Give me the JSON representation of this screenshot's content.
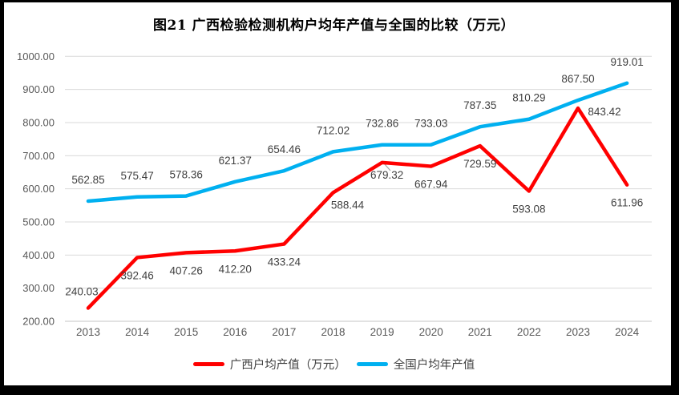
{
  "figure": {
    "title": "图21 广西检验检测机构户均年产值与全国的比较（万元）"
  },
  "chart_data": {
    "type": "line",
    "title": "图21 广西检验检测机构户均年产值与全国的比较（万元）",
    "categories": [
      "2013",
      "2014",
      "2015",
      "2016",
      "2017",
      "2018",
      "2019",
      "2020",
      "2021",
      "2022",
      "2023",
      "2024"
    ],
    "series": [
      {
        "name": "广西户均产值（万元）",
        "color": "#FF0000",
        "values": [
          240.03,
          392.46,
          407.26,
          412.2,
          433.24,
          588.44,
          679.32,
          667.94,
          729.59,
          593.08,
          843.42,
          611.96
        ]
      },
      {
        "name": "全国户均年产值",
        "color": "#00B0F0",
        "values": [
          562.85,
          575.47,
          578.36,
          621.37,
          654.46,
          712.02,
          732.86,
          733.03,
          787.35,
          810.29,
          867.5,
          919.01
        ]
      }
    ],
    "xlabel": "",
    "ylabel": "",
    "ylim": [
      200,
      1000
    ],
    "ytick_step": 100,
    "ytick_labels": [
      "1000.00",
      "900.00",
      "800.00",
      "700.00",
      "600.00",
      "500.00",
      "400.00",
      "300.00",
      "200.00"
    ],
    "grid": true,
    "legend_position": "bottom",
    "data_labels": true,
    "data_label_decimals": 2
  },
  "colors": {
    "gridline": "#D9D9D9",
    "axis_line": "#C6C6C6",
    "tick_label": "#595959",
    "data_label": "#404040",
    "leader_line": "#A6A6A6",
    "frame": "#000000"
  }
}
